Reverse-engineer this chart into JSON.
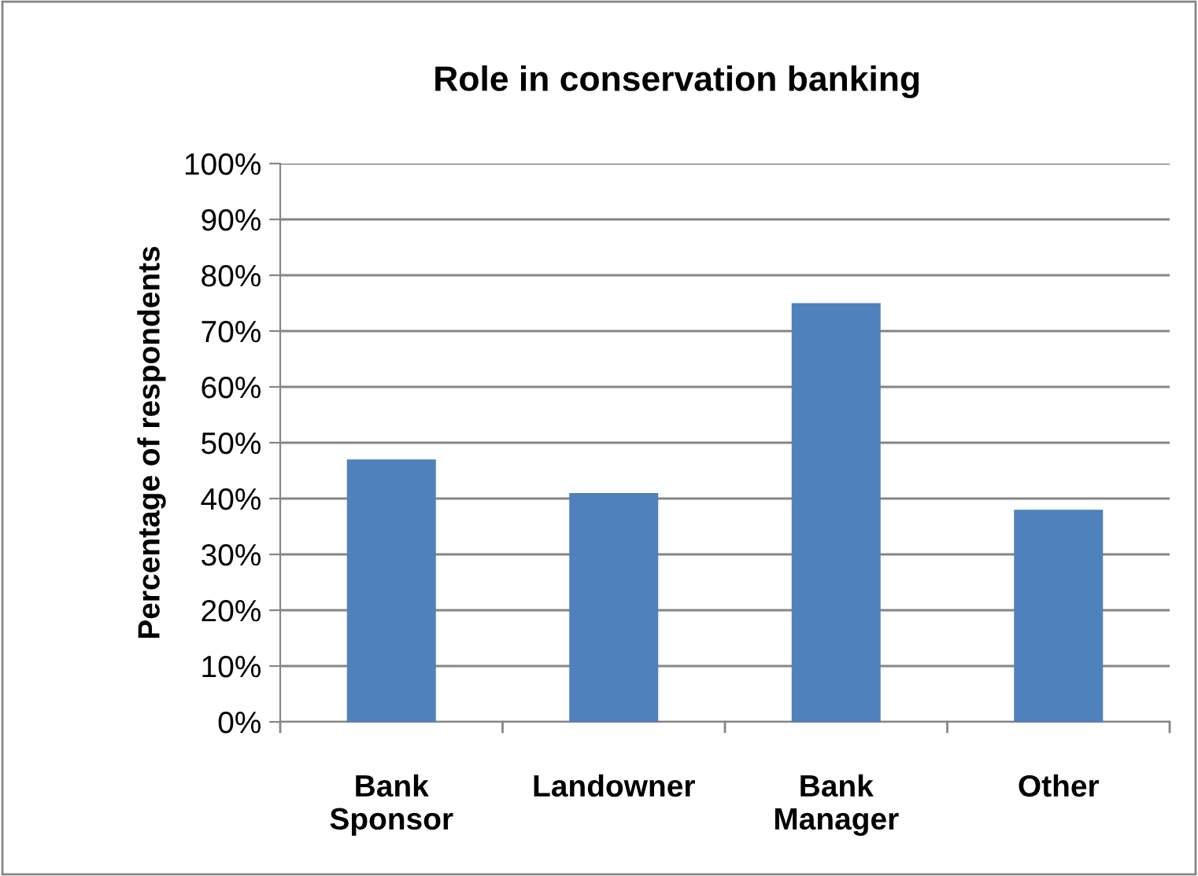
{
  "chart_data": {
    "type": "bar",
    "title": "Role in conservation banking",
    "ylabel": "Percentage of respondents",
    "categories": [
      "Bank Sponsor",
      "Landowner",
      "Bank Manager",
      "Other"
    ],
    "values": [
      47,
      41,
      75,
      38
    ],
    "color": "#4f81bd",
    "ylim": [
      0,
      100
    ],
    "yticks": [
      {
        "value": 0,
        "label": "0%"
      },
      {
        "value": 10,
        "label": "10%"
      },
      {
        "value": 20,
        "label": "20%"
      },
      {
        "value": 30,
        "label": "30%"
      },
      {
        "value": 40,
        "label": "40%"
      },
      {
        "value": 50,
        "label": "50%"
      },
      {
        "value": 60,
        "label": "60%"
      },
      {
        "value": 70,
        "label": "70%"
      },
      {
        "value": 80,
        "label": "80%"
      },
      {
        "value": 90,
        "label": "90%"
      },
      {
        "value": 100,
        "label": "100%"
      }
    ],
    "grid": "y",
    "legend": false
  }
}
